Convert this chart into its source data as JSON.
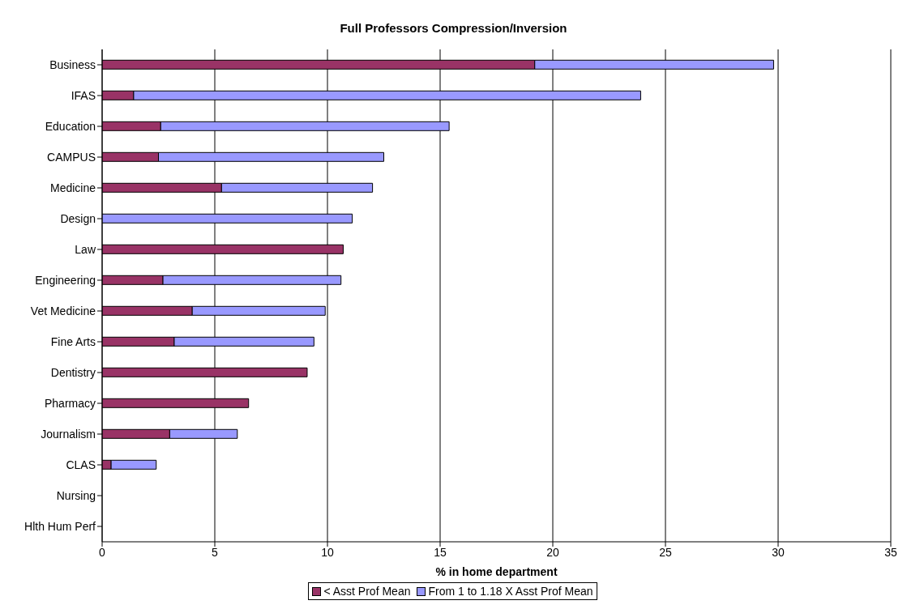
{
  "chart_data": {
    "type": "bar",
    "orientation": "horizontal",
    "stacked": true,
    "title": "Full Professors Compression/Inversion",
    "xlabel": "% in home department",
    "categories": [
      "Business",
      "IFAS",
      "Education",
      "CAMPUS",
      "Medicine",
      "Design",
      "Law",
      "Engineering",
      "Vet Medicine",
      "Fine Arts",
      "Dentistry",
      "Pharmacy",
      "Journalism",
      "CLAS",
      "Nursing",
      "Hlth Hum Perf"
    ],
    "series": [
      {
        "name": "< Asst Prof Mean",
        "color": "#993366",
        "values": [
          19.2,
          1.4,
          2.6,
          2.5,
          5.3,
          0,
          10.7,
          2.7,
          4.0,
          3.2,
          9.1,
          6.5,
          3.0,
          0.4,
          0,
          0
        ]
      },
      {
        "name": "From 1 to 1.18 X Asst Prof Mean",
        "color": "#9999ff",
        "values": [
          10.6,
          22.5,
          12.8,
          10.0,
          6.7,
          11.1,
          0,
          7.9,
          5.9,
          6.2,
          0,
          0,
          3.0,
          2.0,
          0,
          0
        ]
      }
    ],
    "xlim": [
      0,
      35
    ],
    "xticks": [
      0,
      5,
      10,
      15,
      20,
      25,
      30,
      35
    ],
    "grid": "x",
    "legend": "bottom"
  }
}
